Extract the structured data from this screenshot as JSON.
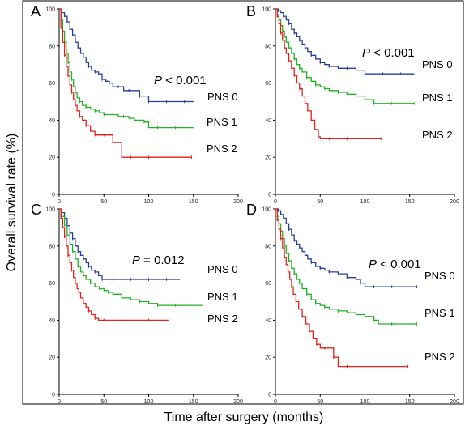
{
  "figure": {
    "ylabel": "Overall survival rate (%)",
    "xlabel": "Time after surgery (months)"
  },
  "colors": {
    "PNS 0": "#2b3f9a",
    "PNS 1": "#22b024",
    "PNS 2": "#e0231e"
  },
  "chart_data": [
    {
      "panel": "A",
      "type": "line",
      "annotation": {
        "italic": "P",
        "rest": " < 0.001"
      },
      "xlim": [
        0,
        200
      ],
      "ylim": [
        0,
        100
      ],
      "xticks": [
        0,
        50,
        100,
        150,
        200
      ],
      "yticks": [
        0,
        20,
        40,
        60,
        80,
        100
      ],
      "series": [
        {
          "name": "PNS 0",
          "x": [
            0,
            3,
            6,
            9,
            12,
            15,
            18,
            21,
            24,
            27,
            30,
            33,
            36,
            40,
            44,
            48,
            52,
            56,
            60,
            66,
            72,
            78,
            84,
            90,
            96,
            100,
            110,
            120,
            130,
            140,
            150
          ],
          "y": [
            100,
            98,
            96,
            93,
            89,
            86,
            82,
            79,
            76,
            74,
            71,
            69,
            67,
            66,
            65,
            62,
            61,
            60,
            58,
            58,
            56,
            56,
            56,
            53,
            53,
            50,
            50,
            50,
            50,
            50,
            50
          ]
        },
        {
          "name": "PNS 1",
          "x": [
            0,
            2,
            4,
            6,
            8,
            10,
            12,
            14,
            16,
            18,
            20,
            23,
            26,
            30,
            35,
            40,
            45,
            50,
            55,
            60,
            66,
            72,
            78,
            84,
            90,
            95,
            100,
            110,
            120,
            130,
            150
          ],
          "y": [
            100,
            94,
            88,
            82,
            76,
            71,
            66,
            62,
            58,
            55,
            52,
            50,
            48,
            47,
            46,
            45,
            44,
            43,
            43,
            43,
            42,
            42,
            41,
            40,
            40,
            39,
            36,
            36,
            36,
            36,
            36
          ]
        },
        {
          "name": "PNS 2",
          "x": [
            0,
            2,
            4,
            6,
            8,
            10,
            12,
            14,
            16,
            18,
            20,
            23,
            26,
            30,
            35,
            40,
            45,
            50,
            55,
            60,
            65,
            70,
            75,
            80,
            90,
            100,
            120,
            148
          ],
          "y": [
            100,
            90,
            82,
            75,
            69,
            64,
            59,
            55,
            51,
            48,
            45,
            42,
            40,
            37,
            34,
            32,
            32,
            32,
            32,
            28,
            28,
            20,
            20,
            20,
            20,
            20,
            20,
            20
          ]
        }
      ]
    },
    {
      "panel": "B",
      "type": "line",
      "annotation": {
        "italic": "P",
        "rest": " < 0.001"
      },
      "xlim": [
        0,
        200
      ],
      "ylim": [
        0,
        100
      ],
      "xticks": [
        0,
        50,
        100,
        150,
        200
      ],
      "yticks": [
        0,
        20,
        40,
        60,
        80,
        100
      ],
      "series": [
        {
          "name": "PNS 0",
          "x": [
            0,
            3,
            6,
            9,
            12,
            15,
            18,
            21,
            24,
            27,
            30,
            33,
            36,
            40,
            45,
            50,
            55,
            60,
            70,
            80,
            90,
            100,
            110,
            120,
            130,
            140,
            155
          ],
          "y": [
            100,
            99,
            98,
            96,
            94,
            92,
            89,
            87,
            85,
            83,
            81,
            79,
            77,
            75,
            73,
            71,
            70,
            69,
            68,
            68,
            67,
            65,
            65,
            65,
            65,
            65,
            65
          ]
        },
        {
          "name": "PNS 1",
          "x": [
            0,
            2,
            4,
            6,
            8,
            10,
            12,
            15,
            18,
            21,
            24,
            27,
            30,
            35,
            40,
            45,
            50,
            55,
            60,
            70,
            80,
            90,
            100,
            110,
            120,
            130,
            140,
            155
          ],
          "y": [
            100,
            97,
            94,
            91,
            88,
            85,
            82,
            79,
            76,
            73,
            70,
            68,
            66,
            63,
            61,
            59,
            58,
            57,
            56,
            55,
            54,
            53,
            51,
            49,
            49,
            49,
            49,
            49
          ]
        },
        {
          "name": "PNS 2",
          "x": [
            0,
            2,
            4,
            6,
            8,
            10,
            12,
            15,
            18,
            21,
            24,
            27,
            30,
            33,
            36,
            40,
            44,
            48,
            50,
            60,
            70,
            80,
            90,
            100,
            110,
            118
          ],
          "y": [
            100,
            96,
            92,
            87,
            83,
            79,
            76,
            72,
            68,
            64,
            60,
            57,
            53,
            49,
            45,
            40,
            35,
            31,
            30,
            30,
            30,
            30,
            30,
            30,
            30,
            30
          ]
        }
      ]
    },
    {
      "panel": "C",
      "type": "line",
      "annotation": {
        "italic": "P",
        "rest": " = 0.012"
      },
      "xlim": [
        0,
        200
      ],
      "ylim": [
        0,
        100
      ],
      "xticks": [
        0,
        50,
        100,
        150,
        200
      ],
      "yticks": [
        0,
        20,
        40,
        60,
        80,
        100
      ],
      "series": [
        {
          "name": "PNS 0",
          "x": [
            0,
            3,
            6,
            9,
            12,
            15,
            18,
            21,
            24,
            27,
            30,
            33,
            36,
            40,
            44,
            48,
            50,
            60,
            70,
            80,
            90,
            100,
            110,
            120,
            135
          ],
          "y": [
            100,
            98,
            95,
            91,
            87,
            84,
            80,
            77,
            75,
            73,
            71,
            69,
            67,
            66,
            64,
            62,
            62,
            62,
            62,
            62,
            62,
            62,
            62,
            62,
            62
          ]
        },
        {
          "name": "PNS 1",
          "x": [
            0,
            3,
            6,
            9,
            12,
            15,
            18,
            21,
            24,
            27,
            30,
            35,
            40,
            45,
            50,
            55,
            60,
            70,
            80,
            90,
            100,
            110,
            120,
            130,
            160
          ],
          "y": [
            100,
            96,
            91,
            86,
            81,
            77,
            73,
            69,
            66,
            64,
            62,
            60,
            58,
            57,
            56,
            55,
            54,
            52,
            51,
            50,
            49,
            48,
            48,
            48,
            48
          ]
        },
        {
          "name": "PNS 2",
          "x": [
            0,
            2,
            4,
            6,
            8,
            10,
            12,
            14,
            16,
            18,
            20,
            22,
            24,
            27,
            30,
            33,
            36,
            40,
            44,
            50,
            60,
            70,
            80,
            100,
            122
          ],
          "y": [
            100,
            95,
            90,
            85,
            80,
            75,
            71,
            67,
            63,
            60,
            57,
            55,
            52,
            49,
            47,
            45,
            43,
            41,
            40,
            40,
            40,
            40,
            40,
            40,
            40
          ]
        }
      ]
    },
    {
      "panel": "D",
      "type": "line",
      "annotation": {
        "italic": "P",
        "rest": " < 0.001"
      },
      "xlim": [
        0,
        200
      ],
      "ylim": [
        0,
        100
      ],
      "xticks": [
        0,
        50,
        100,
        150,
        200
      ],
      "yticks": [
        0,
        20,
        40,
        60,
        80,
        100
      ],
      "series": [
        {
          "name": "PNS 0",
          "x": [
            0,
            3,
            6,
            9,
            12,
            15,
            18,
            21,
            24,
            27,
            30,
            33,
            36,
            40,
            45,
            50,
            55,
            60,
            70,
            80,
            90,
            95,
            100,
            110,
            120,
            130,
            140,
            158
          ],
          "y": [
            100,
            99,
            97,
            95,
            92,
            89,
            86,
            83,
            81,
            79,
            77,
            75,
            73,
            71,
            69,
            68,
            67,
            66,
            65,
            63,
            62,
            60,
            58,
            58,
            58,
            58,
            58,
            58
          ]
        },
        {
          "name": "PNS 1",
          "x": [
            0,
            2,
            4,
            6,
            8,
            10,
            12,
            15,
            18,
            21,
            24,
            27,
            30,
            35,
            40,
            45,
            50,
            55,
            60,
            70,
            80,
            90,
            100,
            110,
            115,
            130,
            145,
            158
          ],
          "y": [
            100,
            96,
            92,
            88,
            84,
            80,
            76,
            72,
            68,
            65,
            62,
            60,
            57,
            54,
            51,
            49,
            48,
            47,
            46,
            45,
            44,
            43,
            42,
            40,
            38,
            38,
            38,
            38
          ]
        },
        {
          "name": "PNS 2",
          "x": [
            0,
            2,
            4,
            6,
            8,
            10,
            12,
            14,
            16,
            18,
            20,
            23,
            26,
            30,
            34,
            38,
            42,
            46,
            50,
            55,
            60,
            65,
            70,
            80,
            90,
            100,
            120,
            148
          ],
          "y": [
            100,
            94,
            89,
            84,
            79,
            74,
            70,
            66,
            62,
            58,
            54,
            50,
            46,
            42,
            38,
            34,
            30,
            27,
            25,
            25,
            25,
            20,
            15,
            15,
            15,
            15,
            15,
            15
          ]
        }
      ]
    }
  ]
}
